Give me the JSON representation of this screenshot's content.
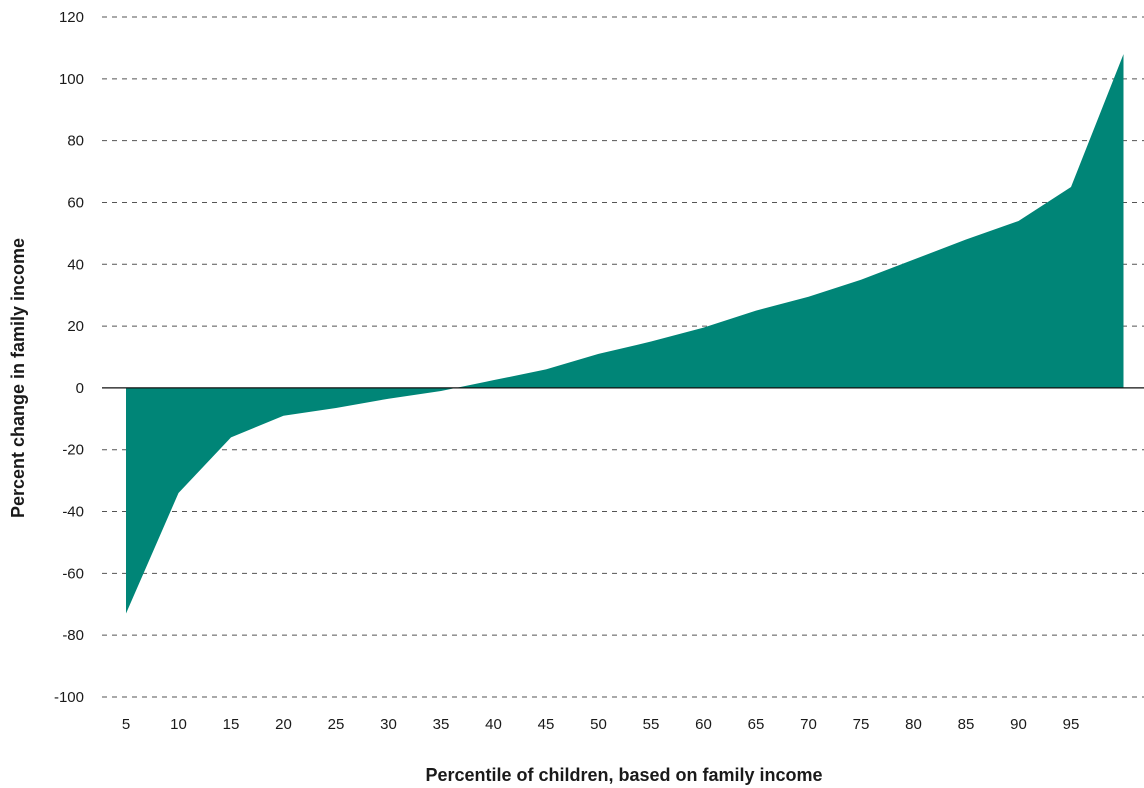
{
  "chart_data": {
    "type": "area",
    "title": "",
    "xlabel": "Percentile of children, based on family income",
    "ylabel": "Percent change in family income",
    "x": [
      5,
      10,
      15,
      20,
      25,
      30,
      35,
      40,
      45,
      50,
      55,
      60,
      65,
      70,
      75,
      80,
      85,
      90,
      95,
      100
    ],
    "x_tick_labels": [
      "5",
      "10",
      "15",
      "20",
      "25",
      "30",
      "35",
      "40",
      "45",
      "50",
      "55",
      "60",
      "65",
      "70",
      "75",
      "80",
      "85",
      "90",
      "95"
    ],
    "y": [
      -73,
      -34,
      -16,
      -9,
      -6.5,
      -3.5,
      -1,
      2.5,
      6,
      11,
      15,
      19.5,
      25,
      29.5,
      35,
      41.5,
      48,
      54,
      65,
      108
    ],
    "ylim": [
      -100,
      120
    ],
    "y_ticks": [
      120,
      100,
      80,
      60,
      40,
      20,
      0,
      -20,
      -40,
      -60,
      -80,
      -100
    ],
    "grid": true,
    "legend": "none",
    "colors": {
      "fill": "#008577",
      "grid": "#555555",
      "text": "#1a1a1a"
    }
  }
}
